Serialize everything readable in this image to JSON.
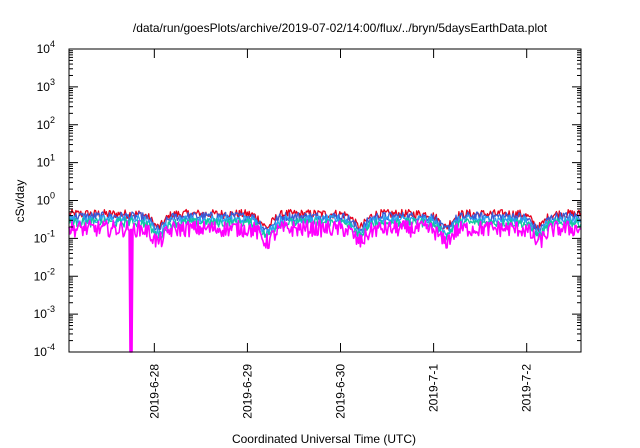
{
  "chart_data": {
    "type": "line",
    "title": "/data/run/goesPlots/archive/2019-07-02/14:00/flux/../bryn/5daysEarthData.plot",
    "xlabel": "Coordinated Universal Time (UTC)",
    "ylabel": "cSv/day",
    "y_scale": "log",
    "ylim": [
      0.0001,
      10000
    ],
    "xlim": [
      "2019-06-27T02:00",
      "2019-07-02T14:00"
    ],
    "y_ticks": [
      {
        "value": 0.0001,
        "base": "10",
        "exp": "-4"
      },
      {
        "value": 0.001,
        "base": "10",
        "exp": "-3"
      },
      {
        "value": 0.01,
        "base": "10",
        "exp": "-2"
      },
      {
        "value": 0.1,
        "base": "10",
        "exp": "-1"
      },
      {
        "value": 1,
        "base": "10",
        "exp": "0"
      },
      {
        "value": 10,
        "base": "10",
        "exp": "1"
      },
      {
        "value": 100,
        "base": "10",
        "exp": "2"
      },
      {
        "value": 1000,
        "base": "10",
        "exp": "3"
      },
      {
        "value": 10000,
        "base": "10",
        "exp": "4"
      }
    ],
    "x_ticks": [
      {
        "value": "2019-06-28T00:00",
        "label": "2019-6-28"
      },
      {
        "value": "2019-06-29T00:00",
        "label": "2019-6-29"
      },
      {
        "value": "2019-06-30T00:00",
        "label": "2019-6-30"
      },
      {
        "value": "2019-07-01T00:00",
        "label": "2019-7-1"
      },
      {
        "value": "2019-07-02T00:00",
        "label": "2019-7-2"
      }
    ],
    "grid": false,
    "legend": "none",
    "dips": [
      "2019-06-28T01:00",
      "2019-06-29T05:00",
      "2019-06-30T05:00",
      "2019-07-01T03:00",
      "2019-07-02T03:00"
    ],
    "drop_event": {
      "time": "2019-06-27T18:00",
      "min_value": 0.0001
    },
    "series": [
      {
        "color": "#e8001c",
        "base": 0.44
      },
      {
        "color": "#3a5bd6",
        "base": 0.38
      },
      {
        "color": "#2aa3f0",
        "base": 0.31
      },
      {
        "color": "#11c8a0",
        "base": 0.26
      },
      {
        "color": "#ff00ff",
        "base": 0.18
      }
    ]
  }
}
